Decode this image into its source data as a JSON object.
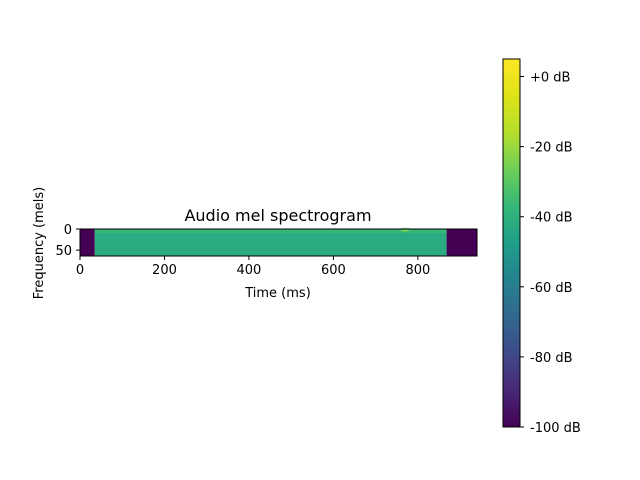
{
  "chart_data": {
    "type": "heatmap",
    "title": "Audio mel spectrogram",
    "xlabel": "Time (ms)",
    "ylabel": "Frequency (mels)",
    "x_range": [
      0,
      940
    ],
    "y_range": [
      0,
      64
    ],
    "y_inverted": true,
    "x_ticks": [
      0,
      200,
      400,
      600,
      800
    ],
    "x_tick_labels": [
      "0",
      "200",
      "400",
      "600",
      "800"
    ],
    "y_ticks": [
      0,
      50
    ],
    "y_tick_labels": [
      "0",
      "50"
    ],
    "colormap": "viridis",
    "color_range_db": [
      -100,
      5
    ],
    "colorbar_ticks": [
      0,
      -20,
      -40,
      -60,
      -80,
      -100
    ],
    "colorbar_tick_labels": [
      "+0 dB",
      "-20 dB",
      "-40 dB",
      "-60 dB",
      "-80 dB",
      "-100 dB"
    ],
    "regions": [
      {
        "name": "leading-silence",
        "x_start": 0,
        "x_end": 35,
        "level_db": -100
      },
      {
        "name": "speech",
        "x_start": 35,
        "x_end": 868,
        "level_db": -42
      },
      {
        "name": "trailing-silence",
        "x_start": 868,
        "x_end": 940,
        "level_db": -100
      }
    ],
    "highlight": {
      "x": 770,
      "y": 3,
      "level_db": -10
    }
  }
}
